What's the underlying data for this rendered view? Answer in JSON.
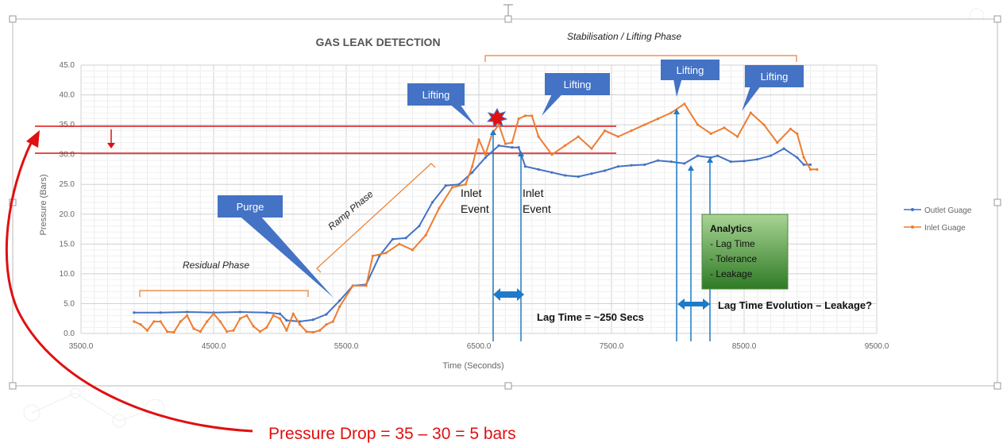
{
  "colors": {
    "outlet": "#4472C4",
    "inlet": "#ED7D31",
    "callout": "#4472C4",
    "annot_red": "#E01010",
    "arrow_blue": "#1E7BC7",
    "analytics_green": "#3E8E2E"
  },
  "chart_data": {
    "type": "line",
    "title": "GAS LEAK DETECTION",
    "xlabel": "Time (Seconds)",
    "ylabel": "Pressure (Bars)",
    "xlim": [
      3500,
      9500
    ],
    "ylim": [
      0,
      45
    ],
    "x_ticks": [
      "3500.0",
      "4500.0",
      "5500.0",
      "6500.0",
      "7500.0",
      "8500.0",
      "9500.0"
    ],
    "y_ticks": [
      "0.0",
      "5.0",
      "10.0",
      "15.0",
      "20.0",
      "25.0",
      "30.0",
      "35.0",
      "40.0",
      "45.0"
    ],
    "grid": true,
    "legend_position": "right",
    "series": [
      {
        "name": "Outlet Guage",
        "points": [
          [
            3900,
            3.5
          ],
          [
            4100,
            3.5
          ],
          [
            4300,
            3.6
          ],
          [
            4500,
            3.5
          ],
          [
            4700,
            3.6
          ],
          [
            4900,
            3.5
          ],
          [
            5000,
            3.3
          ],
          [
            5050,
            2.2
          ],
          [
            5150,
            2.0
          ],
          [
            5250,
            2.3
          ],
          [
            5350,
            3.2
          ],
          [
            5450,
            5.5
          ],
          [
            5550,
            8.0
          ],
          [
            5650,
            8.2
          ],
          [
            5750,
            13.0
          ],
          [
            5850,
            15.8
          ],
          [
            5950,
            16.0
          ],
          [
            6050,
            18.0
          ],
          [
            6150,
            22.0
          ],
          [
            6250,
            24.8
          ],
          [
            6350,
            25.0
          ],
          [
            6450,
            27.0
          ],
          [
            6550,
            29.5
          ],
          [
            6650,
            31.5
          ],
          [
            6750,
            31.2
          ],
          [
            6800,
            31.2
          ],
          [
            6850,
            28.0
          ],
          [
            6950,
            27.5
          ],
          [
            7050,
            27.0
          ],
          [
            7150,
            26.5
          ],
          [
            7250,
            26.3
          ],
          [
            7350,
            26.8
          ],
          [
            7450,
            27.3
          ],
          [
            7550,
            28.0
          ],
          [
            7650,
            28.2
          ],
          [
            7750,
            28.3
          ],
          [
            7850,
            29.0
          ],
          [
            7950,
            28.8
          ],
          [
            8050,
            28.5
          ],
          [
            8150,
            29.8
          ],
          [
            8250,
            29.5
          ],
          [
            8300,
            29.8
          ],
          [
            8400,
            28.8
          ],
          [
            8500,
            28.9
          ],
          [
            8600,
            29.2
          ],
          [
            8700,
            29.8
          ],
          [
            8800,
            31.0
          ],
          [
            8900,
            29.5
          ],
          [
            8950,
            28.3
          ],
          [
            9000,
            28.3
          ]
        ]
      },
      {
        "name": "Inlet Guage",
        "points": [
          [
            3900,
            2.0
          ],
          [
            3950,
            1.5
          ],
          [
            4000,
            0.5
          ],
          [
            4050,
            2.0
          ],
          [
            4100,
            2.0
          ],
          [
            4150,
            0.3
          ],
          [
            4200,
            0.2
          ],
          [
            4250,
            2.0
          ],
          [
            4300,
            3.0
          ],
          [
            4350,
            0.8
          ],
          [
            4400,
            0.3
          ],
          [
            4450,
            2.0
          ],
          [
            4500,
            3.3
          ],
          [
            4550,
            2.0
          ],
          [
            4600,
            0.3
          ],
          [
            4650,
            0.5
          ],
          [
            4700,
            2.5
          ],
          [
            4750,
            3.0
          ],
          [
            4800,
            1.2
          ],
          [
            4850,
            0.3
          ],
          [
            4900,
            1.0
          ],
          [
            4950,
            3.0
          ],
          [
            5000,
            2.5
          ],
          [
            5050,
            0.5
          ],
          [
            5100,
            3.3
          ],
          [
            5150,
            1.5
          ],
          [
            5200,
            0.3
          ],
          [
            5250,
            0.2
          ],
          [
            5300,
            0.5
          ],
          [
            5350,
            1.5
          ],
          [
            5400,
            2.0
          ],
          [
            5450,
            4.5
          ],
          [
            5550,
            8.0
          ],
          [
            5650,
            8.0
          ],
          [
            5700,
            13.0
          ],
          [
            5800,
            13.5
          ],
          [
            5900,
            15.0
          ],
          [
            6000,
            14.0
          ],
          [
            6100,
            16.5
          ],
          [
            6200,
            21.0
          ],
          [
            6300,
            24.5
          ],
          [
            6400,
            25.0
          ],
          [
            6450,
            28.0
          ],
          [
            6500,
            32.5
          ],
          [
            6550,
            30.0
          ],
          [
            6600,
            33.5
          ],
          [
            6650,
            35.0
          ],
          [
            6700,
            31.8
          ],
          [
            6750,
            32.0
          ],
          [
            6800,
            36.0
          ],
          [
            6850,
            36.5
          ],
          [
            6900,
            36.5
          ],
          [
            6950,
            33.0
          ],
          [
            7050,
            30.0
          ],
          [
            7150,
            31.5
          ],
          [
            7250,
            33.0
          ],
          [
            7350,
            31.0
          ],
          [
            7450,
            34.0
          ],
          [
            7550,
            33.0
          ],
          [
            7650,
            34.0
          ],
          [
            7750,
            35.0
          ],
          [
            7850,
            36.0
          ],
          [
            7950,
            37.0
          ],
          [
            8050,
            38.5
          ],
          [
            8150,
            35.0
          ],
          [
            8250,
            33.5
          ],
          [
            8350,
            34.5
          ],
          [
            8450,
            33.0
          ],
          [
            8550,
            37.0
          ],
          [
            8650,
            35.0
          ],
          [
            8750,
            32.0
          ],
          [
            8850,
            34.3
          ],
          [
            8900,
            33.5
          ],
          [
            8950,
            29.5
          ],
          [
            9000,
            27.5
          ],
          [
            9050,
            27.5
          ]
        ]
      }
    ]
  },
  "annotations": {
    "phase_residual": "Residual Phase",
    "phase_ramp": "Ramp Phase",
    "phase_stab": "Stabilisation / Lifting Phase",
    "callout_purge": "Purge",
    "callout_lifting": "Lifting",
    "inlet_label_1": "Inlet",
    "event_label_1": "Event",
    "inlet_label_2": "Inlet",
    "event_label_2": "Event",
    "lag_time": "Lag Time = ~250 Secs",
    "lag_evolution": "Lag Time Evolution – Leakage?",
    "analytics_title": "Analytics",
    "analytics_items": [
      "- Lag Time",
      "- Tolerance",
      "- Leakage"
    ],
    "pressure_drop": "Pressure Drop = 35 – 30 = 5 bars"
  }
}
